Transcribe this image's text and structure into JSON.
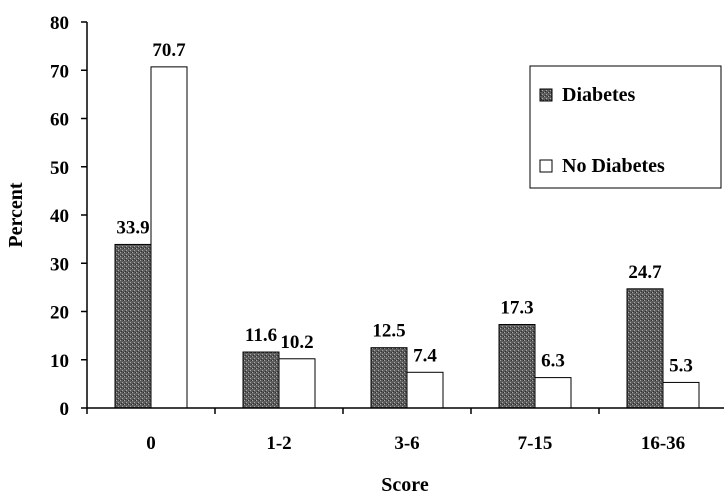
{
  "chart_data": {
    "type": "bar",
    "categories": [
      "0",
      "1-2",
      "3-6",
      "7-15",
      "16-36"
    ],
    "series": [
      {
        "name": "Diabetes",
        "values": [
          33.9,
          11.6,
          12.5,
          17.3,
          24.7
        ],
        "color": "#6e6e6e",
        "pattern": "stippled-gray"
      },
      {
        "name": "No Diabetes",
        "values": [
          70.7,
          10.2,
          7.4,
          6.3,
          5.3
        ],
        "color": "#ffffff"
      }
    ],
    "data_labels": [
      [
        "33.9",
        "11.6",
        "12.5",
        "17.3",
        "24.7"
      ],
      [
        "70.7",
        "10.2",
        "7.4",
        "6.3",
        "5.3"
      ]
    ],
    "title": "",
    "xlabel": "Score",
    "ylabel": "Percent",
    "ylim": [
      0,
      80
    ],
    "yticks": [
      0,
      10,
      20,
      30,
      40,
      50,
      60,
      70,
      80
    ],
    "grid": false,
    "legend_position": "top-right"
  }
}
